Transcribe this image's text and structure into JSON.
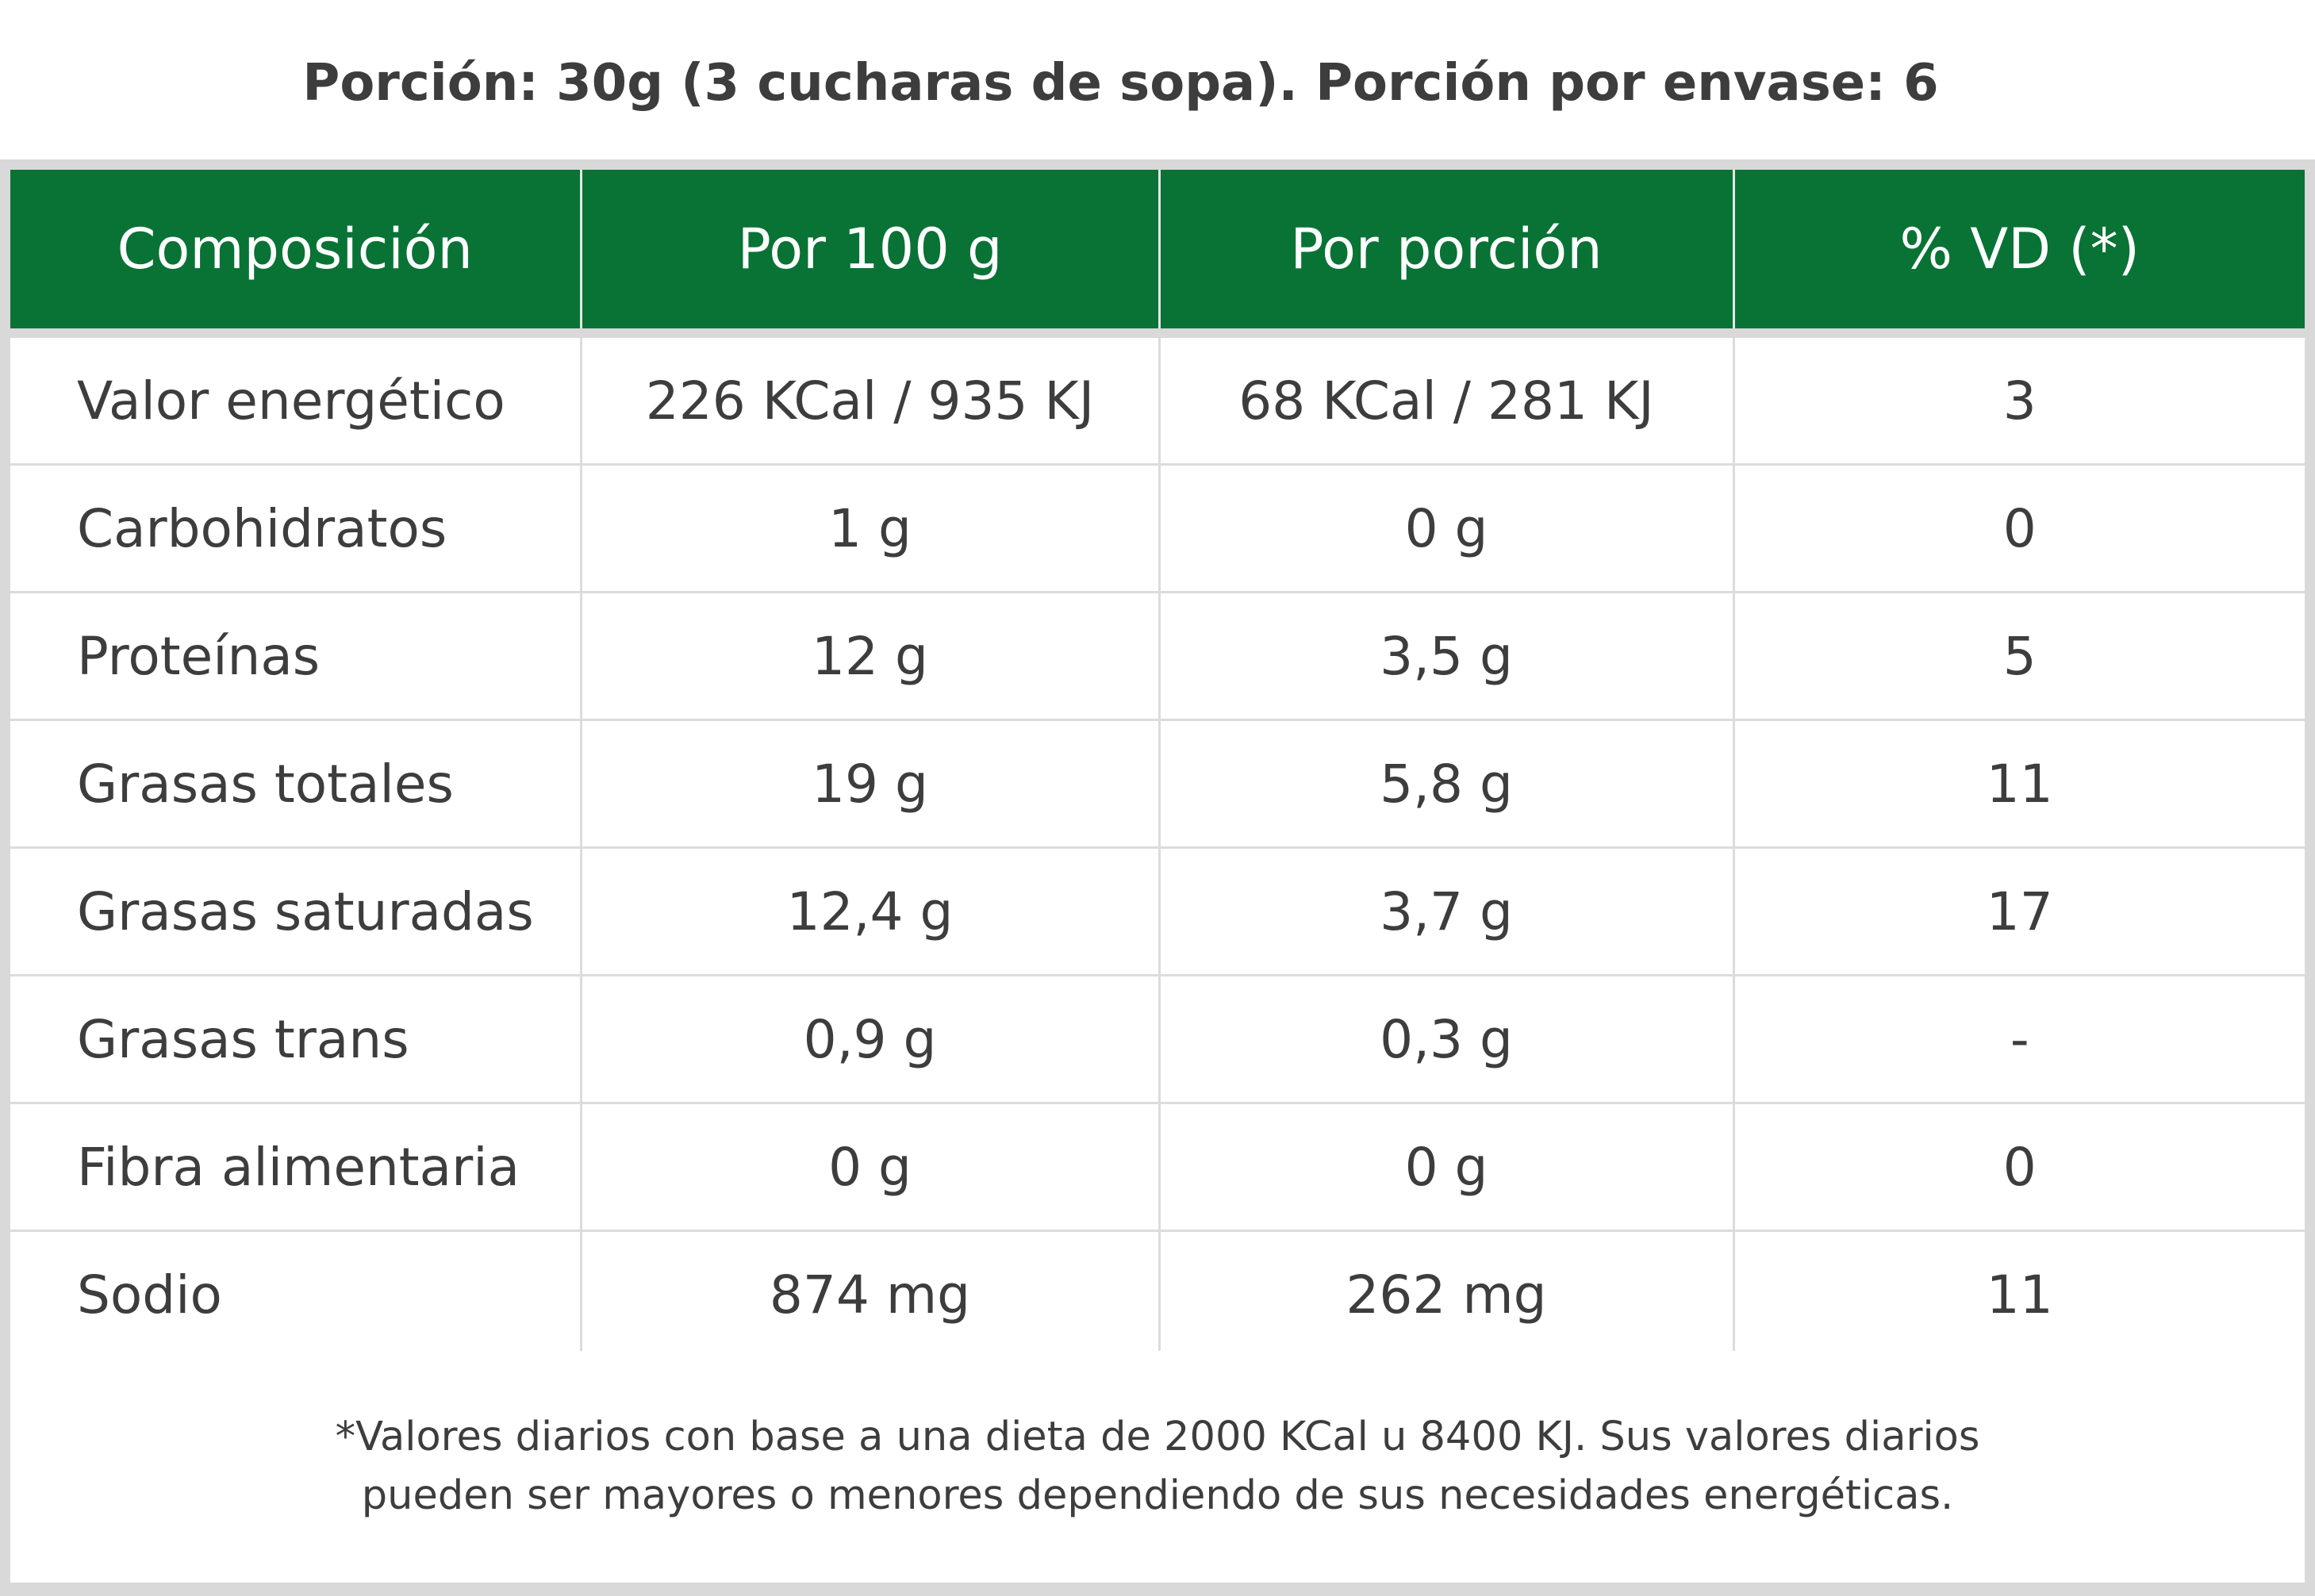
{
  "serving_info": "Porción: 30g (3 cucharas de sopa). Porción por envase: 6",
  "table": {
    "headers": [
      "Composición",
      "Por 100 g",
      "Por porción",
      "% VD (*)"
    ],
    "rows": [
      [
        "Valor energético",
        "226 KCal / 935 KJ",
        "68 KCal / 281 KJ",
        "3"
      ],
      [
        "Carbohidratos",
        "1 g",
        "0 g",
        "0"
      ],
      [
        "Proteínas",
        "12 g",
        "3,5 g",
        "5"
      ],
      [
        "Grasas totales",
        "19 g",
        "5,8 g",
        "11"
      ],
      [
        "Grasas saturadas",
        "12,4 g",
        "3,7 g",
        "17"
      ],
      [
        "Grasas trans",
        "0,9 g",
        "0,3 g",
        "-"
      ],
      [
        "Fibra alimentaria",
        "0 g",
        "0 g",
        "0"
      ],
      [
        "Sodio",
        "874 mg",
        "262 mg",
        "11"
      ]
    ]
  },
  "footnote": {
    "line1": "*Valores diarios con base a una dieta de 2000 KCal u 8400 KJ. Sus valores diarios",
    "line2": "pueden ser mayores o menores dependiendo de sus necesidades energéticas."
  },
  "colors": {
    "header_background": "#087335",
    "header_text": "#ffffff",
    "frame": "#d9d9d9",
    "text": "#3d3d3d"
  }
}
